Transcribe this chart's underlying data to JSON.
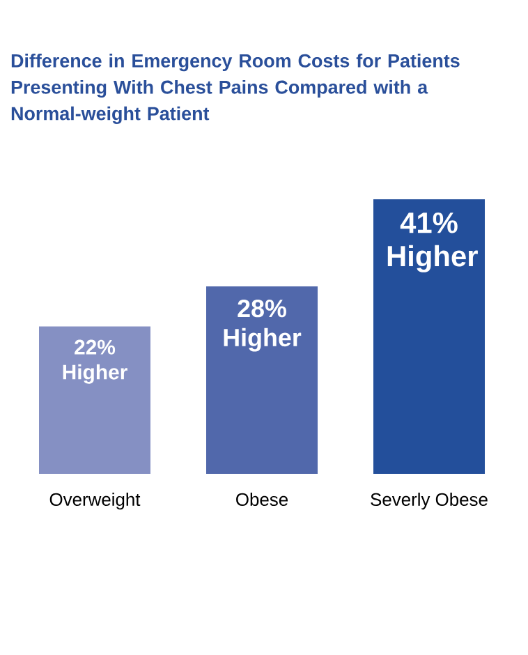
{
  "chart_data": {
    "type": "bar",
    "title": "Difference in Emergency Room Costs for Patients Presenting With Chest Pains Compared with a Normal-weight Patient",
    "categories": [
      "Overweight",
      "Obese",
      "Severly Obese"
    ],
    "values": [
      22,
      28,
      41
    ],
    "colors": [
      "#8590c3",
      "#5168ab",
      "#234f9b"
    ],
    "value_labels": [
      "22% Higher",
      "28% Higher",
      "41% Higher"
    ],
    "grid": false
  }
}
